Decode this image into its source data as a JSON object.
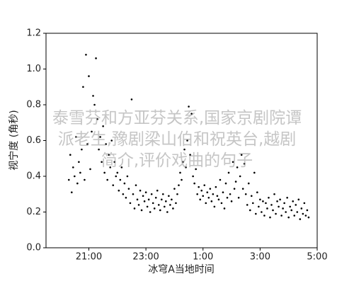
{
  "chart_data": {
    "type": "scatter",
    "x_label": "冰穹A当地时间",
    "y_label": "视宁度 (角秒)",
    "color": "#000000",
    "xlim": [
      19.5,
      29
    ],
    "xticks": [
      {
        "value": 21,
        "label": "21:00"
      },
      {
        "value": 23,
        "label": "23:00"
      },
      {
        "value": 25,
        "label": "1:00"
      },
      {
        "value": 27,
        "label": "3:00"
      },
      {
        "value": 29,
        "label": "5:00"
      }
    ],
    "ylim": [
      0,
      1.2
    ],
    "yticks": [
      {
        "value": 0,
        "label": "0.0"
      },
      0.2,
      0.4,
      0.6,
      0.8,
      {
        "value": 1,
        "label": "1.0"
      },
      1.2
    ],
    "x": [
      20.3,
      20.35,
      20.4,
      20.45,
      20.5,
      20.55,
      20.6,
      20.65,
      20.7,
      20.75,
      20.8,
      20.85,
      20.9,
      20.95,
      21.0,
      21.05,
      21.1,
      21.15,
      21.2,
      21.25,
      21.3,
      21.35,
      21.4,
      21.45,
      21.5,
      21.55,
      21.6,
      21.65,
      21.7,
      21.75,
      21.8,
      21.85,
      21.9,
      21.95,
      22.0,
      22.05,
      22.1,
      22.15,
      22.2,
      22.25,
      22.3,
      22.35,
      22.4,
      22.45,
      22.5,
      22.55,
      22.6,
      22.65,
      22.7,
      22.75,
      22.8,
      22.85,
      22.9,
      22.95,
      23.0,
      23.05,
      23.1,
      23.15,
      23.2,
      23.25,
      23.3,
      23.35,
      23.4,
      23.45,
      23.5,
      23.55,
      23.6,
      23.65,
      23.7,
      23.75,
      23.8,
      23.85,
      23.9,
      23.95,
      24.0,
      24.05,
      24.1,
      24.15,
      24.2,
      24.25,
      24.3,
      24.35,
      24.4,
      24.45,
      24.5,
      24.55,
      24.6,
      24.65,
      24.7,
      24.75,
      24.8,
      24.85,
      24.9,
      24.95,
      25.0,
      25.05,
      25.1,
      25.15,
      25.2,
      25.25,
      25.3,
      25.35,
      25.4,
      25.45,
      25.5,
      25.55,
      25.6,
      25.65,
      25.7,
      25.75,
      25.8,
      25.85,
      25.9,
      25.95,
      26.0,
      26.05,
      26.1,
      26.15,
      26.2,
      26.25,
      26.3,
      26.35,
      26.4,
      26.45,
      26.5,
      26.55,
      26.6,
      26.65,
      26.7,
      26.75,
      26.8,
      26.85,
      26.9,
      26.95,
      27.0,
      27.05,
      27.1,
      27.15,
      27.2,
      27.25,
      27.3,
      27.35,
      27.4,
      27.45,
      27.5,
      27.55,
      27.6,
      27.65,
      27.7,
      27.75,
      27.8,
      27.85,
      27.9,
      27.95,
      28.0,
      28.05,
      28.1,
      28.15,
      28.2,
      28.25,
      28.3,
      28.35,
      28.4,
      28.45,
      28.5,
      28.55,
      28.6,
      28.65,
      28.7
    ],
    "values": [
      0.38,
      0.52,
      0.31,
      0.45,
      0.4,
      0.62,
      0.36,
      0.48,
      0.42,
      0.55,
      0.9,
      0.38,
      1.08,
      0.58,
      0.96,
      0.44,
      0.65,
      0.85,
      0.8,
      1.06,
      0.72,
      0.55,
      0.62,
      0.48,
      0.68,
      0.42,
      0.58,
      0.38,
      0.52,
      0.45,
      0.6,
      0.35,
      0.48,
      0.4,
      0.42,
      0.32,
      0.38,
      0.45,
      0.3,
      0.36,
      0.28,
      0.4,
      0.33,
      0.25,
      0.83,
      0.3,
      0.22,
      0.35,
      0.27,
      0.24,
      0.32,
      0.21,
      0.29,
      0.26,
      0.31,
      0.23,
      0.27,
      0.2,
      0.3,
      0.25,
      0.22,
      0.28,
      0.32,
      0.24,
      0.21,
      0.27,
      0.3,
      0.23,
      0.26,
      0.2,
      0.29,
      0.24,
      0.27,
      0.22,
      0.33,
      0.25,
      0.3,
      0.35,
      0.42,
      0.38,
      0.48,
      0.55,
      0.45,
      0.6,
      0.79,
      0.52,
      0.75,
      0.4,
      0.36,
      0.44,
      0.3,
      0.34,
      0.27,
      0.32,
      0.29,
      0.35,
      0.25,
      0.31,
      0.28,
      0.33,
      0.26,
      0.3,
      0.23,
      0.34,
      0.29,
      0.27,
      0.38,
      0.25,
      0.31,
      0.22,
      0.36,
      0.28,
      0.42,
      0.3,
      0.26,
      0.48,
      0.33,
      0.37,
      0.45,
      0.28,
      0.4,
      0.52,
      0.33,
      0.47,
      0.3,
      0.24,
      0.36,
      0.21,
      0.29,
      0.25,
      0.42,
      0.19,
      0.31,
      0.23,
      0.27,
      0.2,
      0.26,
      0.18,
      0.25,
      0.22,
      0.28,
      0.17,
      0.24,
      0.21,
      0.3,
      0.19,
      0.26,
      0.23,
      0.27,
      0.18,
      0.22,
      0.25,
      0.2,
      0.28,
      0.17,
      0.23,
      0.21,
      0.26,
      0.18,
      0.24,
      0.2,
      0.27,
      0.16,
      0.22,
      0.19,
      0.25,
      0.18,
      0.21,
      0.17
    ]
  },
  "watermark": [
    "泰雪芬和方亚芬关系,国家京剧院谭",
    "派老生,豫剧梁山伯和祝英台,越剧",
    "简介,评价戏曲的句子"
  ]
}
